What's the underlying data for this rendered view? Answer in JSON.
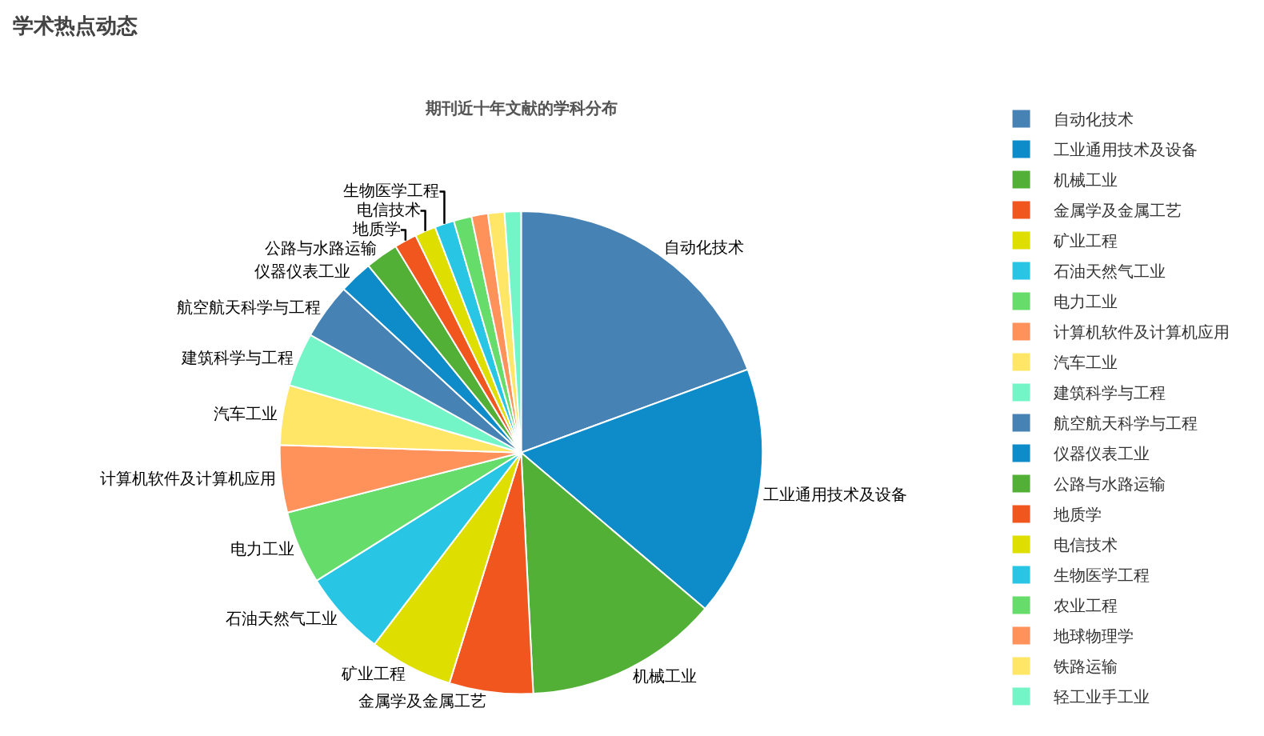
{
  "chart_data": {
    "type": "pie",
    "title": "学术热点动态",
    "subtitle": "期刊近十年文献的学科分布",
    "categories": [
      "自动化技术",
      "工业通用技术及设备",
      "机械工业",
      "金属学及金属工艺",
      "矿业工程",
      "石油天然气工业",
      "电力工业",
      "计算机软件及计算机应用",
      "汽车工业",
      "建筑科学与工程",
      "航空航天科学与工程",
      "仪器仪表工业",
      "公路与水路运输",
      "地质学",
      "电信技术",
      "生物医学工程",
      "农业工程",
      "地球物理学",
      "铁路运输",
      "轻工业手工业"
    ],
    "values": [
      19.4,
      16.8,
      13,
      5.6,
      5.6,
      5.7,
      4.9,
      4.5,
      4,
      3.6,
      3.75,
      2.25,
      2.2,
      1.5,
      1.4,
      1.3,
      1.2,
      1.1,
      1.1,
      1.1
    ],
    "colors": [
      "#4682b4",
      "#0e8bc9",
      "#51b035",
      "#f0561e",
      "#dede00",
      "#28c6e4",
      "#66dc6a",
      "#ff915a",
      "#ffe666",
      "#73f5c8",
      "#4682b4",
      "#0e8bc9",
      "#51b035",
      "#f0561e",
      "#dede00",
      "#28c6e4",
      "#66dc6a",
      "#ff915a",
      "#ffe666",
      "#73f5c8"
    ],
    "legend": "right"
  }
}
